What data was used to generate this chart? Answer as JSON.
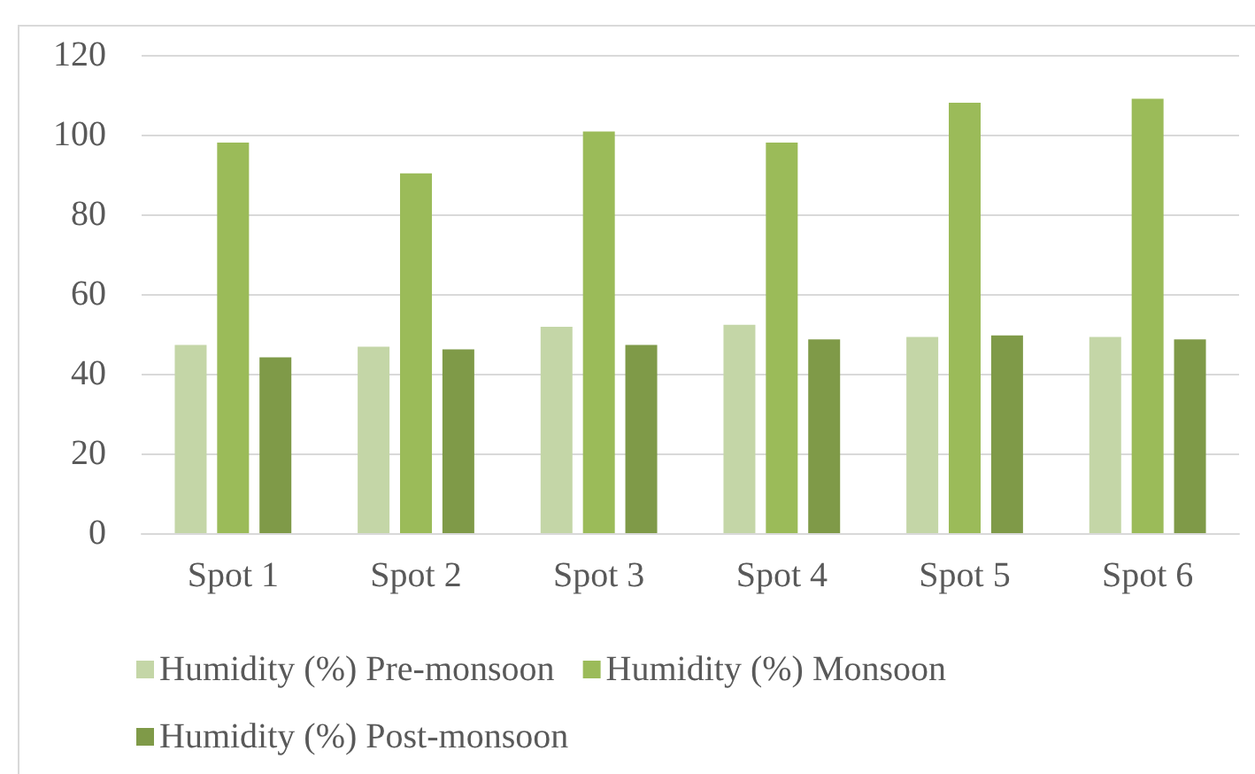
{
  "chart_data": {
    "type": "bar",
    "categories": [
      "Spot 1",
      "Spot 2",
      "Spot 3",
      "Spot 4",
      "Spot 5",
      "Spot 6"
    ],
    "series": [
      {
        "name": "Humidity (%) Pre-monsoon",
        "color": "#c4d6a7",
        "values": [
          47.2,
          46.8,
          51.8,
          52.3,
          49.2,
          49.2
        ]
      },
      {
        "name": "Humidity (%) Monsoon",
        "color": "#9bbb59",
        "values": [
          98,
          90.3,
          100.8,
          98,
          108,
          109
        ]
      },
      {
        "name": "Humidity (%) Post-monsoon",
        "color": "#7f9a48",
        "values": [
          44.1,
          46.1,
          47.2,
          48.6,
          49.6,
          48.6
        ]
      }
    ],
    "ylim": [
      0,
      120
    ],
    "yticks": [
      0,
      20,
      40,
      60,
      80,
      100,
      120
    ],
    "grid": "y",
    "legend": "bottom"
  }
}
